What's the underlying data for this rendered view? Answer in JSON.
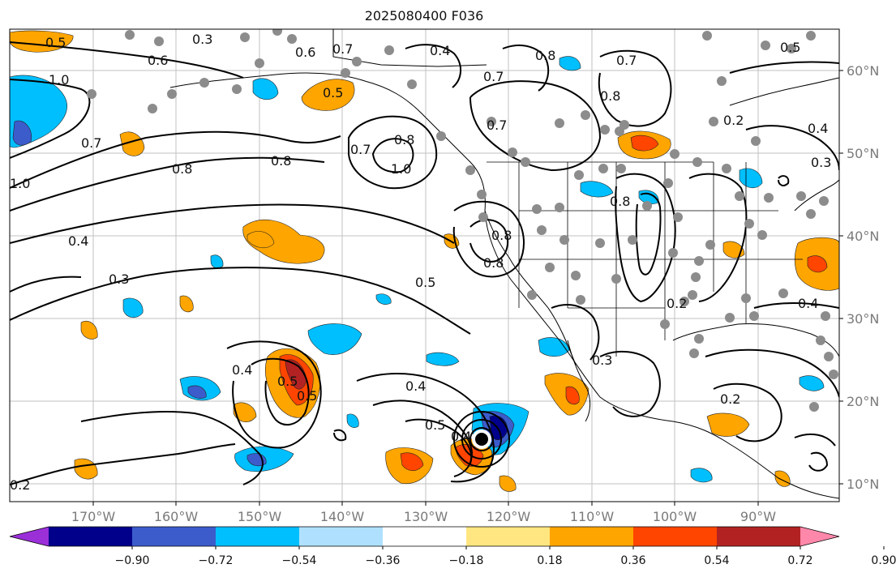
{
  "title": "2025080400 F036",
  "map": {
    "lon_ticks": [
      "170°W",
      "160°W",
      "150°W",
      "140°W",
      "130°W",
      "120°W",
      "110°W",
      "100°W",
      "90°W"
    ],
    "lat_ticks": [
      "60°N",
      "50°N",
      "40°N",
      "30°N",
      "20°N",
      "10°N"
    ],
    "contour_labels": [
      "0.5",
      "0.3",
      "0.6",
      "0.6",
      "0.7",
      "0.4",
      "0.7",
      "0.8",
      "0.7",
      "1.0",
      "0.7",
      "0.8",
      "0.8",
      "0.5",
      "0.7",
      "0.8",
      "1.0",
      "0.7",
      "0.8",
      "0.8",
      "1.0",
      "0.4",
      "0.3",
      "0.5",
      "0.8",
      "0.8",
      "0.4",
      "0.5",
      "0.5",
      "0.4",
      "0.5",
      "0.4",
      "0.3",
      "0.2",
      "0.2",
      "0.4",
      "0.2",
      "0.2",
      "0.4",
      "0.3",
      "0.5"
    ],
    "station_marker_color": "#8c8c8c",
    "storm_center_color": "#000000"
  },
  "colorbar": {
    "colors": [
      "#9b30d9",
      "#00008b",
      "#3c5ccc",
      "#00bfff",
      "#afe1ff",
      "#ffffff",
      "#ffe680",
      "#ffa500",
      "#ff4500",
      "#b22222",
      "#ff88aa"
    ],
    "tick_labels": [
      "−0.90",
      "−0.72",
      "−0.54",
      "−0.36",
      "−0.18",
      "0.18",
      "0.36",
      "0.54",
      "0.72",
      "0.90"
    ]
  }
}
